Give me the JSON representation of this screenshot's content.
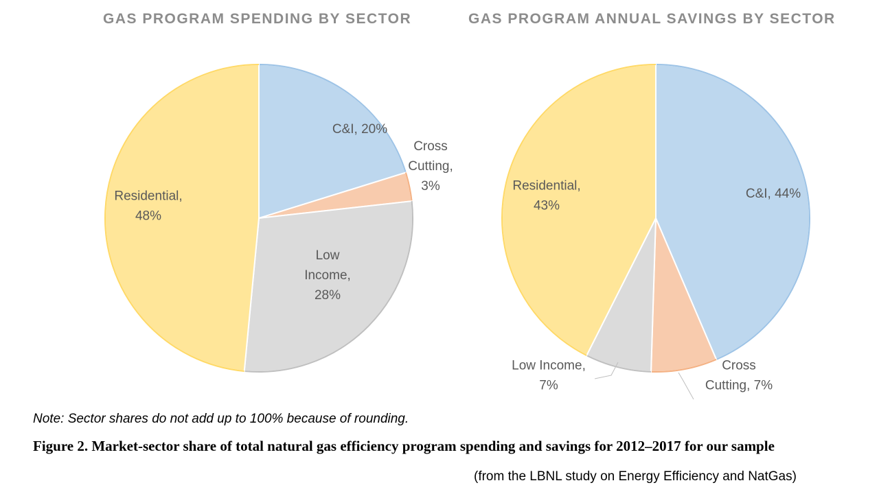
{
  "chart_data": [
    {
      "type": "pie",
      "title": "GAS PROGRAM SPENDING BY SECTOR",
      "start": "12 o'clock, clockwise",
      "slices": [
        {
          "label": "C&I",
          "value": 20,
          "data_label": [
            "C&I, 20%"
          ],
          "color": "#bdd7ee",
          "edge": "#9dc3e6"
        },
        {
          "label": "Cross Cutting",
          "value": 3,
          "data_label": [
            "Cross",
            "Cutting,",
            "3%"
          ],
          "color": "#f8cbad",
          "edge": "#f4b183"
        },
        {
          "label": "Low Income",
          "value": 28,
          "data_label": [
            "Low",
            "Income,",
            "28%"
          ],
          "color": "#dbdbdb",
          "edge": "#bfbfbf"
        },
        {
          "label": "Residential",
          "value": 48,
          "data_label": [
            "Residential,",
            "48%"
          ],
          "color": "#ffe699",
          "edge": "#ffd966"
        }
      ]
    },
    {
      "type": "pie",
      "title": "GAS PROGRAM ANNUAL SAVINGS BY SECTOR",
      "start": "12 o'clock, clockwise",
      "slices": [
        {
          "label": "C&I",
          "value": 44,
          "data_label": [
            "C&I, 44%"
          ],
          "color": "#bdd7ee",
          "edge": "#9dc3e6"
        },
        {
          "label": "Cross Cutting",
          "value": 7,
          "data_label": [
            "Cross",
            "Cutting, 7%"
          ],
          "color": "#f8cbad",
          "edge": "#f4b183"
        },
        {
          "label": "Low Income",
          "value": 7,
          "data_label": [
            "Low Income,",
            "7%"
          ],
          "color": "#dbdbdb",
          "edge": "#bfbfbf"
        },
        {
          "label": "Residential",
          "value": 43,
          "data_label": [
            "Residential,",
            "43%"
          ],
          "color": "#ffe699",
          "edge": "#ffd966"
        }
      ]
    }
  ],
  "note": "Note: Sector shares do not add up to 100% because of rounding.",
  "caption": "Figure 2. Market-sector share of total natural gas efficiency program spending and savings for 2012–2017 for our sample",
  "source": "(from the LBNL study on Energy Efficiency and NatGas)"
}
